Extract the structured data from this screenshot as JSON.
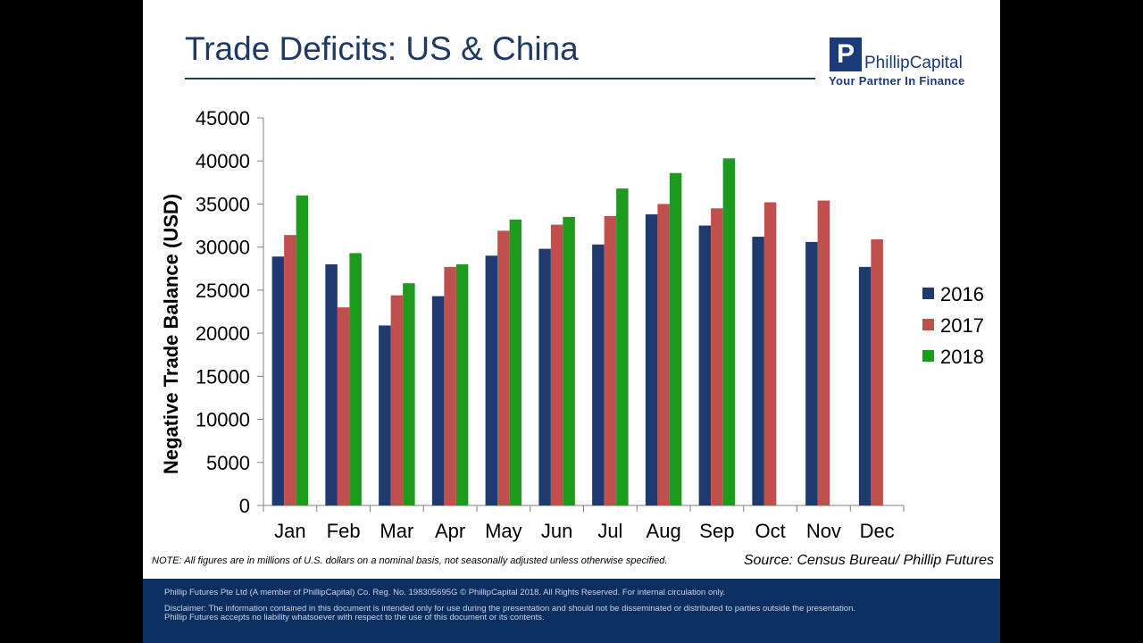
{
  "slide": {
    "title": "Trade Deficits: US & China",
    "logo": {
      "name": "PhillipCapital",
      "mark": "P",
      "tagline": "Your Partner In Finance"
    },
    "note": "NOTE: All figures are in millions of U.S. dollars on a nominal basis, not seasonally adjusted unless otherwise specified.",
    "source": "Source: Census Bureau/ Phillip Futures",
    "footer": {
      "line1": "Phillip Futures Pte Ltd (A member of PhillipCapital) Co. Reg. No. 198305695G © PhillipCapital 2018.  All Rights Reserved. For internal circulation only.",
      "line2": "Disclaimer: The information contained in this document is intended only for use during the presentation and should not be disseminated or distributed to parties outside the presentation.",
      "line3": "Phillip Futures accepts no liability whatsoever with respect to the use of this document or its contents."
    }
  },
  "chart_data": {
    "type": "bar",
    "ylabel": "Negative Trade Balance (USD)",
    "xlabel": "",
    "ylim": [
      0,
      45000
    ],
    "yticks": [
      0,
      5000,
      10000,
      15000,
      20000,
      25000,
      30000,
      35000,
      40000,
      45000
    ],
    "categories": [
      "Jan",
      "Feb",
      "Mar",
      "Apr",
      "May",
      "Jun",
      "Jul",
      "Aug",
      "Sep",
      "Oct",
      "Nov",
      "Dec"
    ],
    "legend_position": "right",
    "grid": false,
    "series": [
      {
        "name": "2016",
        "color": "#1f3a6e",
        "values": [
          28900,
          28000,
          20900,
          24300,
          29000,
          29800,
          30300,
          33800,
          32500,
          31200,
          30600,
          27700
        ]
      },
      {
        "name": "2017",
        "color": "#c0504d",
        "values": [
          31400,
          23000,
          24400,
          27700,
          31900,
          32600,
          33600,
          35000,
          34500,
          35200,
          35400,
          30900
        ]
      },
      {
        "name": "2018",
        "color": "#1e9a1e",
        "values": [
          36000,
          29300,
          25800,
          28000,
          33200,
          33500,
          36800,
          38600,
          40300,
          null,
          null,
          null
        ]
      }
    ]
  }
}
